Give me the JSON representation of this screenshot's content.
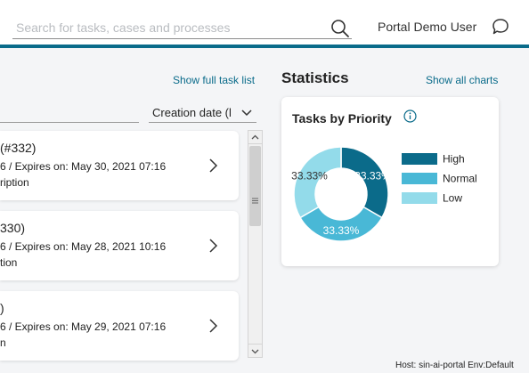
{
  "header": {
    "search_placeholder": "Search for tasks, cases and processes",
    "user_name": "Portal Demo User"
  },
  "tasks_panel": {
    "show_full_list_label": "Show full task list",
    "sort_label": "Creation date (l",
    "tasks": [
      {
        "title": "(#332)",
        "meta": "6 / Expires on: May 30, 2021 07:16",
        "desc": "ription"
      },
      {
        "title": "330)",
        "meta": "6 / Expires on: May 28, 2021 10:16",
        "desc": "tion"
      },
      {
        "title": ")",
        "meta": "6 / Expires on: May 29, 2021 07:16",
        "desc": "n"
      }
    ]
  },
  "statistics": {
    "title": "Statistics",
    "show_all_label": "Show all charts",
    "chart_title": "Tasks by Priority"
  },
  "chart_data": {
    "type": "pie",
    "title": "Tasks by Priority",
    "categories": [
      "High",
      "Normal",
      "Low"
    ],
    "values": [
      33.33,
      33.33,
      33.33
    ],
    "labels": [
      "33.33%",
      "33.33%",
      "33.33%"
    ],
    "colors": [
      "#0b6b8a",
      "#49b8d6",
      "#93dbea"
    ],
    "donut": true,
    "legend": "right"
  },
  "footer": {
    "host_text": "Host: sin-ai-portal Env:Default"
  }
}
